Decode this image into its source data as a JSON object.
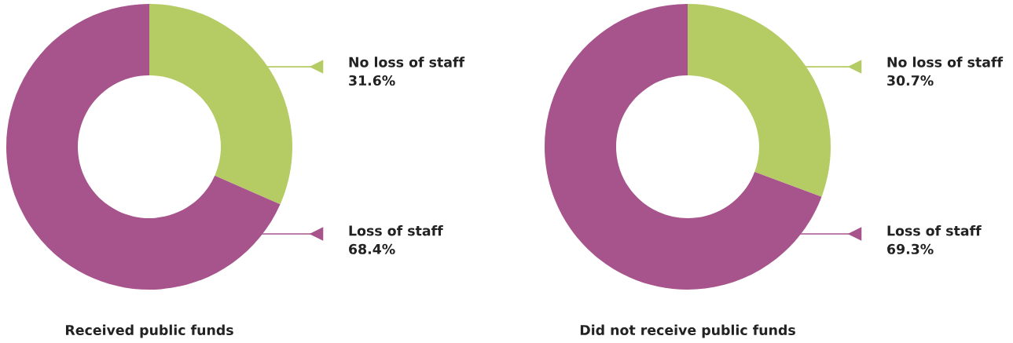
{
  "chart_data": [
    {
      "type": "donut",
      "title": "Received public funds",
      "categories": [
        "No loss of staff",
        "Loss of staff"
      ],
      "values": [
        31.6,
        68.4
      ],
      "value_labels": [
        "31.6%",
        "68.4%"
      ],
      "colors": [
        "#b5cb64",
        "#a7548c"
      ],
      "legend": "right"
    },
    {
      "type": "donut",
      "title": "Did not receive public funds",
      "categories": [
        "No loss of staff",
        "Loss of staff"
      ],
      "values": [
        30.7,
        69.3
      ],
      "value_labels": [
        "30.7%",
        "69.3%"
      ],
      "colors": [
        "#b5cb64",
        "#a7548c"
      ],
      "legend": "right"
    }
  ]
}
